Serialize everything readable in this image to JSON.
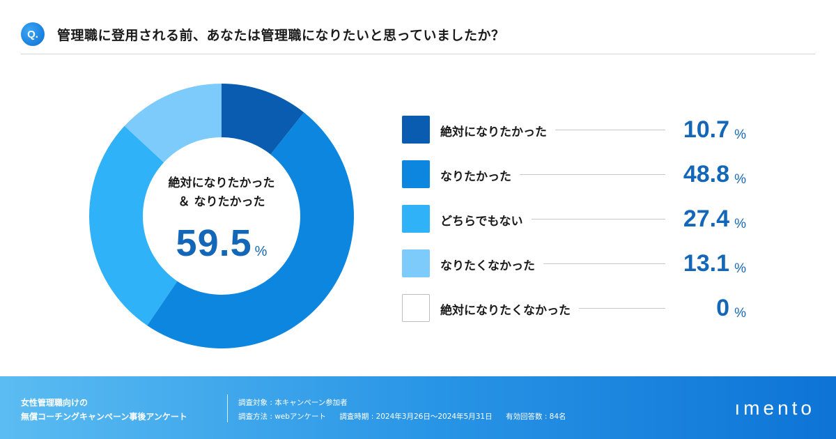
{
  "header": {
    "badge": "Q.",
    "question": "管理職に登用される前、あなたは管理職になりたいと思っていましたか？"
  },
  "colors": {
    "accent": "#1467b8",
    "series": [
      "#0a5cb0",
      "#0d86e0",
      "#2fb2f7",
      "#7ccbfb",
      "#ffffff"
    ]
  },
  "chart_data": {
    "type": "pie",
    "title": "管理職に登用される前、あなたは管理職になりたいと思っていましたか？",
    "categories": [
      "絶対になりたかった",
      "なりたかった",
      "どちらでもない",
      "なりたくなかった",
      "絶対になりたくなかった"
    ],
    "values": [
      10.7,
      48.8,
      27.4,
      13.1,
      0
    ],
    "value_labels": [
      "10.7",
      "48.8",
      "27.4",
      "13.1",
      "0"
    ],
    "unit": "%",
    "center": {
      "label_line1": "絶対になりたかった",
      "label_line2": "＆ なりたかった",
      "value": "59.5",
      "unit": "%"
    }
  },
  "footer": {
    "survey_title_line1": "女性管理職向けの",
    "survey_title_line2": "無償コーチングキャンペーン事後アンケート",
    "target": "調査対象 : 本キャンペーン参加者",
    "method": "調査方法 : webアンケート",
    "period": "調査時期 : 2024年3月26日～2024年5月31日",
    "responses": "有効回答数 : 84名",
    "logo": "ımento"
  }
}
